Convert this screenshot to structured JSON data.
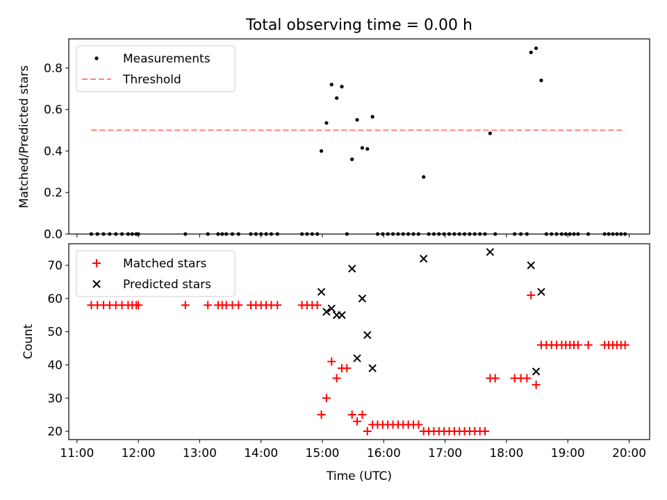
{
  "chart_data": [
    {
      "type": "scatter",
      "title": "Total observing time = 0.00 h",
      "xlabel": "",
      "ylabel": "Matched/Predicted stars",
      "xlim": [
        "10:52",
        "20:20"
      ],
      "ylim": [
        0,
        0.94
      ],
      "yticks": [
        "0.0",
        "0.2",
        "0.4",
        "0.6",
        "0.8"
      ],
      "grid": false,
      "legend": "upper left",
      "series": [
        {
          "name": "Measurements",
          "color": "#000000",
          "marker": "dot",
          "points": [
            [
              "11:14",
              0
            ],
            [
              "11:20",
              0
            ],
            [
              "11:26",
              0
            ],
            [
              "11:32",
              0
            ],
            [
              "11:38",
              0
            ],
            [
              "11:44",
              0
            ],
            [
              "11:50",
              0
            ],
            [
              "11:54",
              0
            ],
            [
              "11:58",
              0
            ],
            [
              "12:00",
              0
            ],
            [
              "12:46",
              0
            ],
            [
              "13:08",
              0
            ],
            [
              "13:18",
              0
            ],
            [
              "13:22",
              0
            ],
            [
              "13:26",
              0
            ],
            [
              "13:32",
              0
            ],
            [
              "13:38",
              0
            ],
            [
              "13:50",
              0
            ],
            [
              "13:55",
              0
            ],
            [
              "14:00",
              0
            ],
            [
              "14:05",
              0
            ],
            [
              "14:10",
              0
            ],
            [
              "14:16",
              0
            ],
            [
              "14:40",
              0
            ],
            [
              "14:45",
              0
            ],
            [
              "14:50",
              0
            ],
            [
              "14:55",
              0
            ],
            [
              "14:59",
              0.4
            ],
            [
              "15:04",
              0.535
            ],
            [
              "15:09",
              0.72
            ],
            [
              "15:14",
              0.655
            ],
            [
              "15:19",
              0.71
            ],
            [
              "15:24",
              0
            ],
            [
              "15:29",
              0.36
            ],
            [
              "15:34",
              0.55
            ],
            [
              "15:39",
              0.415
            ],
            [
              "15:44",
              0.41
            ],
            [
              "15:49",
              0.565
            ],
            [
              "15:54",
              0
            ],
            [
              "15:59",
              0
            ],
            [
              "16:04",
              0
            ],
            [
              "16:09",
              0
            ],
            [
              "16:14",
              0
            ],
            [
              "16:19",
              0
            ],
            [
              "16:24",
              0
            ],
            [
              "16:29",
              0
            ],
            [
              "16:34",
              0
            ],
            [
              "16:39",
              0.275
            ],
            [
              "16:44",
              0
            ],
            [
              "16:49",
              0
            ],
            [
              "16:54",
              0
            ],
            [
              "16:59",
              0
            ],
            [
              "17:04",
              0
            ],
            [
              "17:09",
              0
            ],
            [
              "17:14",
              0
            ],
            [
              "17:19",
              0
            ],
            [
              "17:24",
              0
            ],
            [
              "17:29",
              0
            ],
            [
              "17:34",
              0
            ],
            [
              "17:39",
              0
            ],
            [
              "17:44",
              0.485
            ],
            [
              "17:49",
              0
            ],
            [
              "18:08",
              0
            ],
            [
              "18:14",
              0
            ],
            [
              "18:20",
              0
            ],
            [
              "18:24",
              0.875
            ],
            [
              "18:29",
              0.895
            ],
            [
              "18:34",
              0.74
            ],
            [
              "18:39",
              0
            ],
            [
              "18:44",
              0
            ],
            [
              "18:49",
              0
            ],
            [
              "18:54",
              0
            ],
            [
              "18:58",
              0
            ],
            [
              "19:02",
              0
            ],
            [
              "19:06",
              0
            ],
            [
              "19:10",
              0
            ],
            [
              "19:20",
              0
            ],
            [
              "19:36",
              0
            ],
            [
              "19:40",
              0
            ],
            [
              "19:44",
              0
            ],
            [
              "19:48",
              0
            ],
            [
              "19:52",
              0
            ],
            [
              "19:56",
              0
            ]
          ]
        },
        {
          "name": "Threshold",
          "color": "#ff7f7f",
          "style": "dashed",
          "points": [
            [
              "11:14",
              0.5
            ],
            [
              "19:56",
              0.5
            ]
          ]
        }
      ]
    },
    {
      "type": "scatter",
      "title": "",
      "xlabel": "Time (UTC)",
      "ylabel": "Count",
      "xlim": [
        "10:52",
        "20:20"
      ],
      "ylim": [
        17.5,
        76.5
      ],
      "xticks": [
        "11:00",
        "12:00",
        "13:00",
        "14:00",
        "15:00",
        "16:00",
        "17:00",
        "18:00",
        "19:00",
        "20:00"
      ],
      "yticks": [
        "20",
        "30",
        "40",
        "50",
        "60",
        "70"
      ],
      "grid": false,
      "legend": "upper left",
      "series": [
        {
          "name": "Matched stars",
          "color": "#ff0000",
          "marker": "plus",
          "points": [
            [
              "11:14",
              58
            ],
            [
              "11:20",
              58
            ],
            [
              "11:26",
              58
            ],
            [
              "11:32",
              58
            ],
            [
              "11:38",
              58
            ],
            [
              "11:44",
              58
            ],
            [
              "11:50",
              58
            ],
            [
              "11:54",
              58
            ],
            [
              "11:58",
              58
            ],
            [
              "12:00",
              58
            ],
            [
              "12:46",
              58
            ],
            [
              "13:08",
              58
            ],
            [
              "13:18",
              58
            ],
            [
              "13:22",
              58
            ],
            [
              "13:26",
              58
            ],
            [
              "13:32",
              58
            ],
            [
              "13:38",
              58
            ],
            [
              "13:50",
              58
            ],
            [
              "13:55",
              58
            ],
            [
              "14:00",
              58
            ],
            [
              "14:05",
              58
            ],
            [
              "14:10",
              58
            ],
            [
              "14:16",
              58
            ],
            [
              "14:40",
              58
            ],
            [
              "14:45",
              58
            ],
            [
              "14:50",
              58
            ],
            [
              "14:55",
              58
            ],
            [
              "14:59",
              25
            ],
            [
              "15:04",
              30
            ],
            [
              "15:09",
              41
            ],
            [
              "15:14",
              36
            ],
            [
              "15:19",
              39
            ],
            [
              "15:24",
              39
            ],
            [
              "15:29",
              25
            ],
            [
              "15:34",
              23
            ],
            [
              "15:39",
              25
            ],
            [
              "15:44",
              20
            ],
            [
              "15:49",
              22
            ],
            [
              "15:54",
              22
            ],
            [
              "15:59",
              22
            ],
            [
              "16:04",
              22
            ],
            [
              "16:09",
              22
            ],
            [
              "16:14",
              22
            ],
            [
              "16:19",
              22
            ],
            [
              "16:24",
              22
            ],
            [
              "16:29",
              22
            ],
            [
              "16:34",
              22
            ],
            [
              "16:39",
              20
            ],
            [
              "16:44",
              20
            ],
            [
              "16:49",
              20
            ],
            [
              "16:54",
              20
            ],
            [
              "16:59",
              20
            ],
            [
              "17:04",
              20
            ],
            [
              "17:09",
              20
            ],
            [
              "17:14",
              20
            ],
            [
              "17:19",
              20
            ],
            [
              "17:24",
              20
            ],
            [
              "17:29",
              20
            ],
            [
              "17:34",
              20
            ],
            [
              "17:39",
              20
            ],
            [
              "17:44",
              36
            ],
            [
              "17:49",
              36
            ],
            [
              "18:08",
              36
            ],
            [
              "18:14",
              36
            ],
            [
              "18:20",
              36
            ],
            [
              "18:24",
              61
            ],
            [
              "18:29",
              34
            ],
            [
              "18:34",
              46
            ],
            [
              "18:39",
              46
            ],
            [
              "18:44",
              46
            ],
            [
              "18:49",
              46
            ],
            [
              "18:54",
              46
            ],
            [
              "18:58",
              46
            ],
            [
              "19:02",
              46
            ],
            [
              "19:06",
              46
            ],
            [
              "19:10",
              46
            ],
            [
              "19:20",
              46
            ],
            [
              "19:36",
              46
            ],
            [
              "19:40",
              46
            ],
            [
              "19:44",
              46
            ],
            [
              "19:48",
              46
            ],
            [
              "19:52",
              46
            ],
            [
              "19:56",
              46
            ]
          ]
        },
        {
          "name": "Predicted stars",
          "color": "#000000",
          "marker": "x",
          "points": [
            [
              "14:59",
              62
            ],
            [
              "15:04",
              56
            ],
            [
              "15:09",
              57
            ],
            [
              "15:14",
              55
            ],
            [
              "15:19",
              55
            ],
            [
              "15:29",
              69
            ],
            [
              "15:34",
              42
            ],
            [
              "15:39",
              60
            ],
            [
              "15:44",
              49
            ],
            [
              "15:49",
              39
            ],
            [
              "16:39",
              72
            ],
            [
              "17:44",
              74
            ],
            [
              "18:24",
              70
            ],
            [
              "18:29",
              38
            ],
            [
              "18:34",
              62
            ]
          ]
        }
      ]
    }
  ]
}
